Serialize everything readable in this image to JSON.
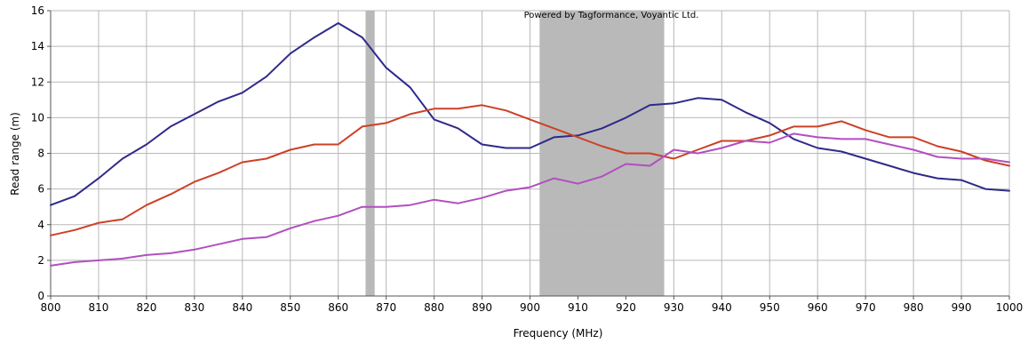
{
  "chart_data": {
    "type": "line",
    "title": "",
    "xlabel": "Frequency (MHz)",
    "ylabel": "Read range (m)",
    "xlim": [
      800,
      1000
    ],
    "ylim": [
      0,
      16
    ],
    "x_ticks": [
      800,
      810,
      820,
      830,
      840,
      850,
      860,
      870,
      880,
      890,
      900,
      910,
      920,
      930,
      940,
      950,
      960,
      970,
      980,
      990,
      1000
    ],
    "y_ticks": [
      0,
      2,
      4,
      6,
      8,
      10,
      12,
      14,
      16
    ],
    "grid": true,
    "watermark": "Powered by Tagformance, Voyantic Ltd.",
    "shaded_bands": [
      {
        "start": 865.7,
        "end": 867.6,
        "color": "#b9b9b9"
      },
      {
        "start": 902,
        "end": 928,
        "color": "#b9b9b9"
      }
    ],
    "x": [
      800,
      805,
      810,
      815,
      820,
      825,
      830,
      835,
      840,
      845,
      850,
      855,
      860,
      865,
      870,
      875,
      880,
      885,
      890,
      895,
      900,
      905,
      910,
      915,
      920,
      925,
      930,
      935,
      940,
      945,
      950,
      955,
      960,
      965,
      970,
      975,
      980,
      985,
      990,
      995,
      1000
    ],
    "series": [
      {
        "color": "#2e2a8a",
        "values": [
          5.1,
          5.6,
          6.6,
          7.7,
          8.5,
          9.5,
          10.2,
          10.9,
          11.4,
          12.3,
          13.6,
          14.5,
          15.3,
          14.5,
          12.8,
          11.7,
          9.9,
          9.4,
          8.5,
          8.3,
          8.3,
          8.9,
          9.0,
          9.4,
          10.0,
          10.7,
          10.8,
          11.1,
          11.0,
          10.3,
          9.7,
          8.8,
          8.3,
          8.1,
          7.7,
          7.3,
          6.9,
          6.6,
          6.5,
          6.0,
          5.9
        ]
      },
      {
        "color": "#cc4125",
        "values": [
          3.4,
          3.7,
          4.1,
          4.3,
          5.1,
          5.7,
          6.4,
          6.9,
          7.5,
          7.7,
          8.2,
          8.5,
          8.5,
          9.5,
          9.7,
          10.2,
          10.5,
          10.5,
          10.7,
          10.4,
          9.9,
          9.4,
          8.9,
          8.4,
          8.0,
          8.0,
          7.7,
          8.2,
          8.7,
          8.7,
          9.0,
          9.5,
          9.5,
          9.8,
          9.3,
          8.9,
          8.9,
          8.4,
          8.1,
          7.6,
          7.3
        ]
      },
      {
        "color": "#b24fc0",
        "values": [
          1.7,
          1.9,
          2.0,
          2.1,
          2.3,
          2.4,
          2.6,
          2.9,
          3.2,
          3.3,
          3.8,
          4.2,
          4.5,
          5.0,
          5.0,
          5.1,
          5.4,
          5.2,
          5.5,
          5.9,
          6.1,
          6.6,
          6.3,
          6.7,
          7.4,
          7.3,
          8.2,
          8.0,
          8.3,
          8.7,
          8.6,
          9.1,
          8.9,
          8.8,
          8.8,
          8.5,
          8.2,
          7.8,
          7.7,
          7.7,
          7.5
        ]
      }
    ]
  }
}
